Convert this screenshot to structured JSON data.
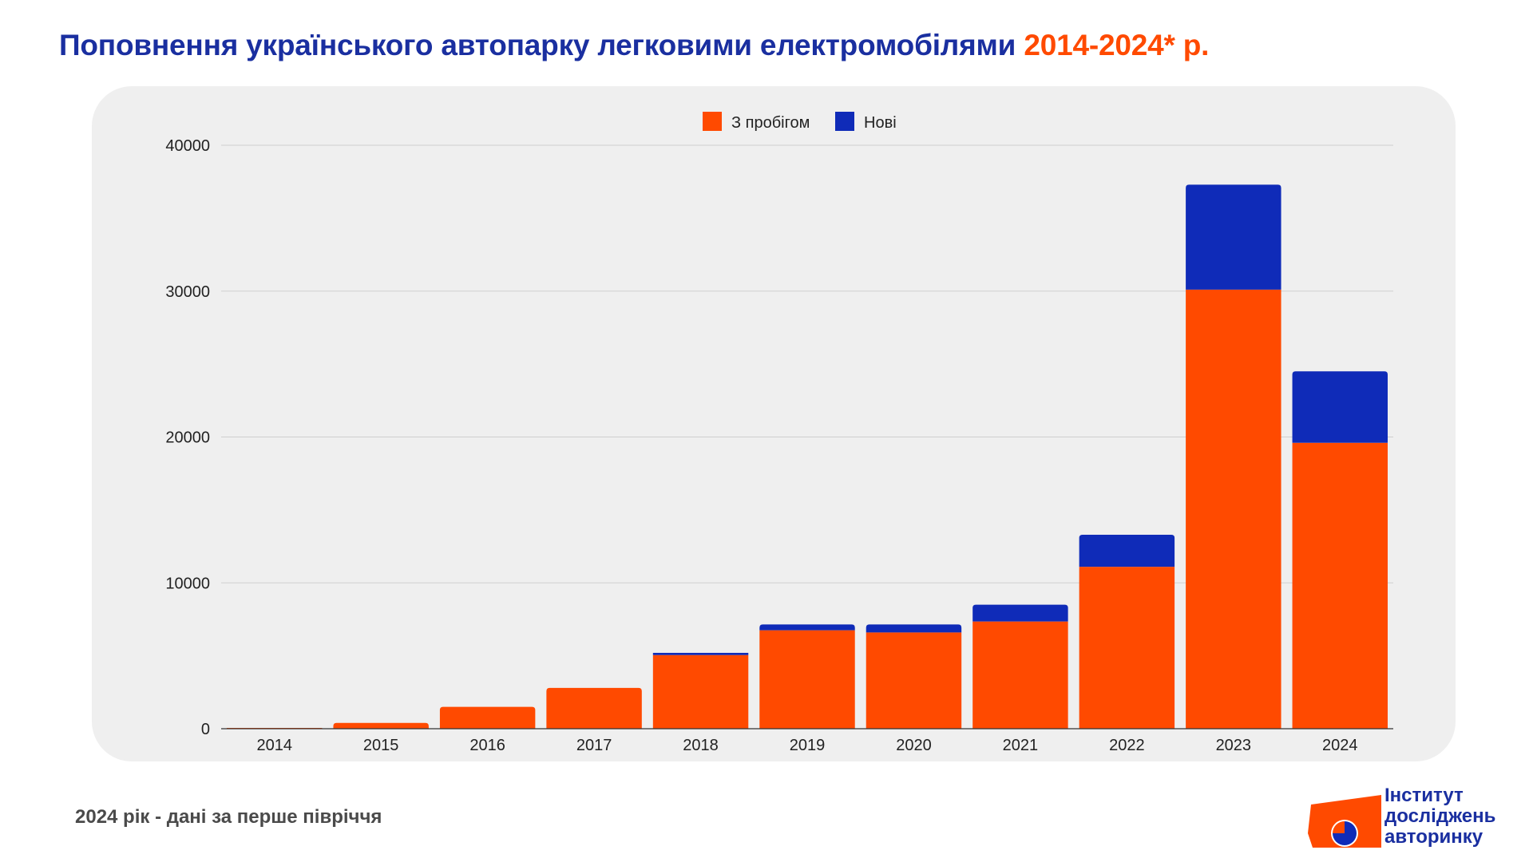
{
  "title": {
    "main": "Поповнення українського автопарку легковими електромобілями",
    "accent": "2014-2024* р."
  },
  "footnote": "2024 рік - дані за перше півріччя",
  "logo": {
    "lines": [
      "Інститут",
      "досліджень",
      "авторинку"
    ]
  },
  "colors": {
    "used": "#ff4a00",
    "new": "#0f2bb8",
    "title": "#1a2fa0",
    "panel": "#efefef"
  },
  "chart_data": {
    "type": "bar",
    "stacked": true,
    "categories": [
      "2014",
      "2015",
      "2016",
      "2017",
      "2018",
      "2019",
      "2020",
      "2021",
      "2022",
      "2023",
      "2024"
    ],
    "series": [
      {
        "name": "З пробігом",
        "values": [
          50,
          400,
          1500,
          2800,
          5050,
          6750,
          6600,
          7350,
          11100,
          30100,
          19600
        ]
      },
      {
        "name": "Нові",
        "values": [
          0,
          0,
          0,
          0,
          150,
          400,
          550,
          1150,
          2200,
          7200,
          4900
        ]
      }
    ],
    "yticks": [
      0,
      10000,
      20000,
      30000,
      40000
    ],
    "ylim": [
      0,
      40000
    ],
    "grid": true,
    "legend_position": "top-center"
  }
}
